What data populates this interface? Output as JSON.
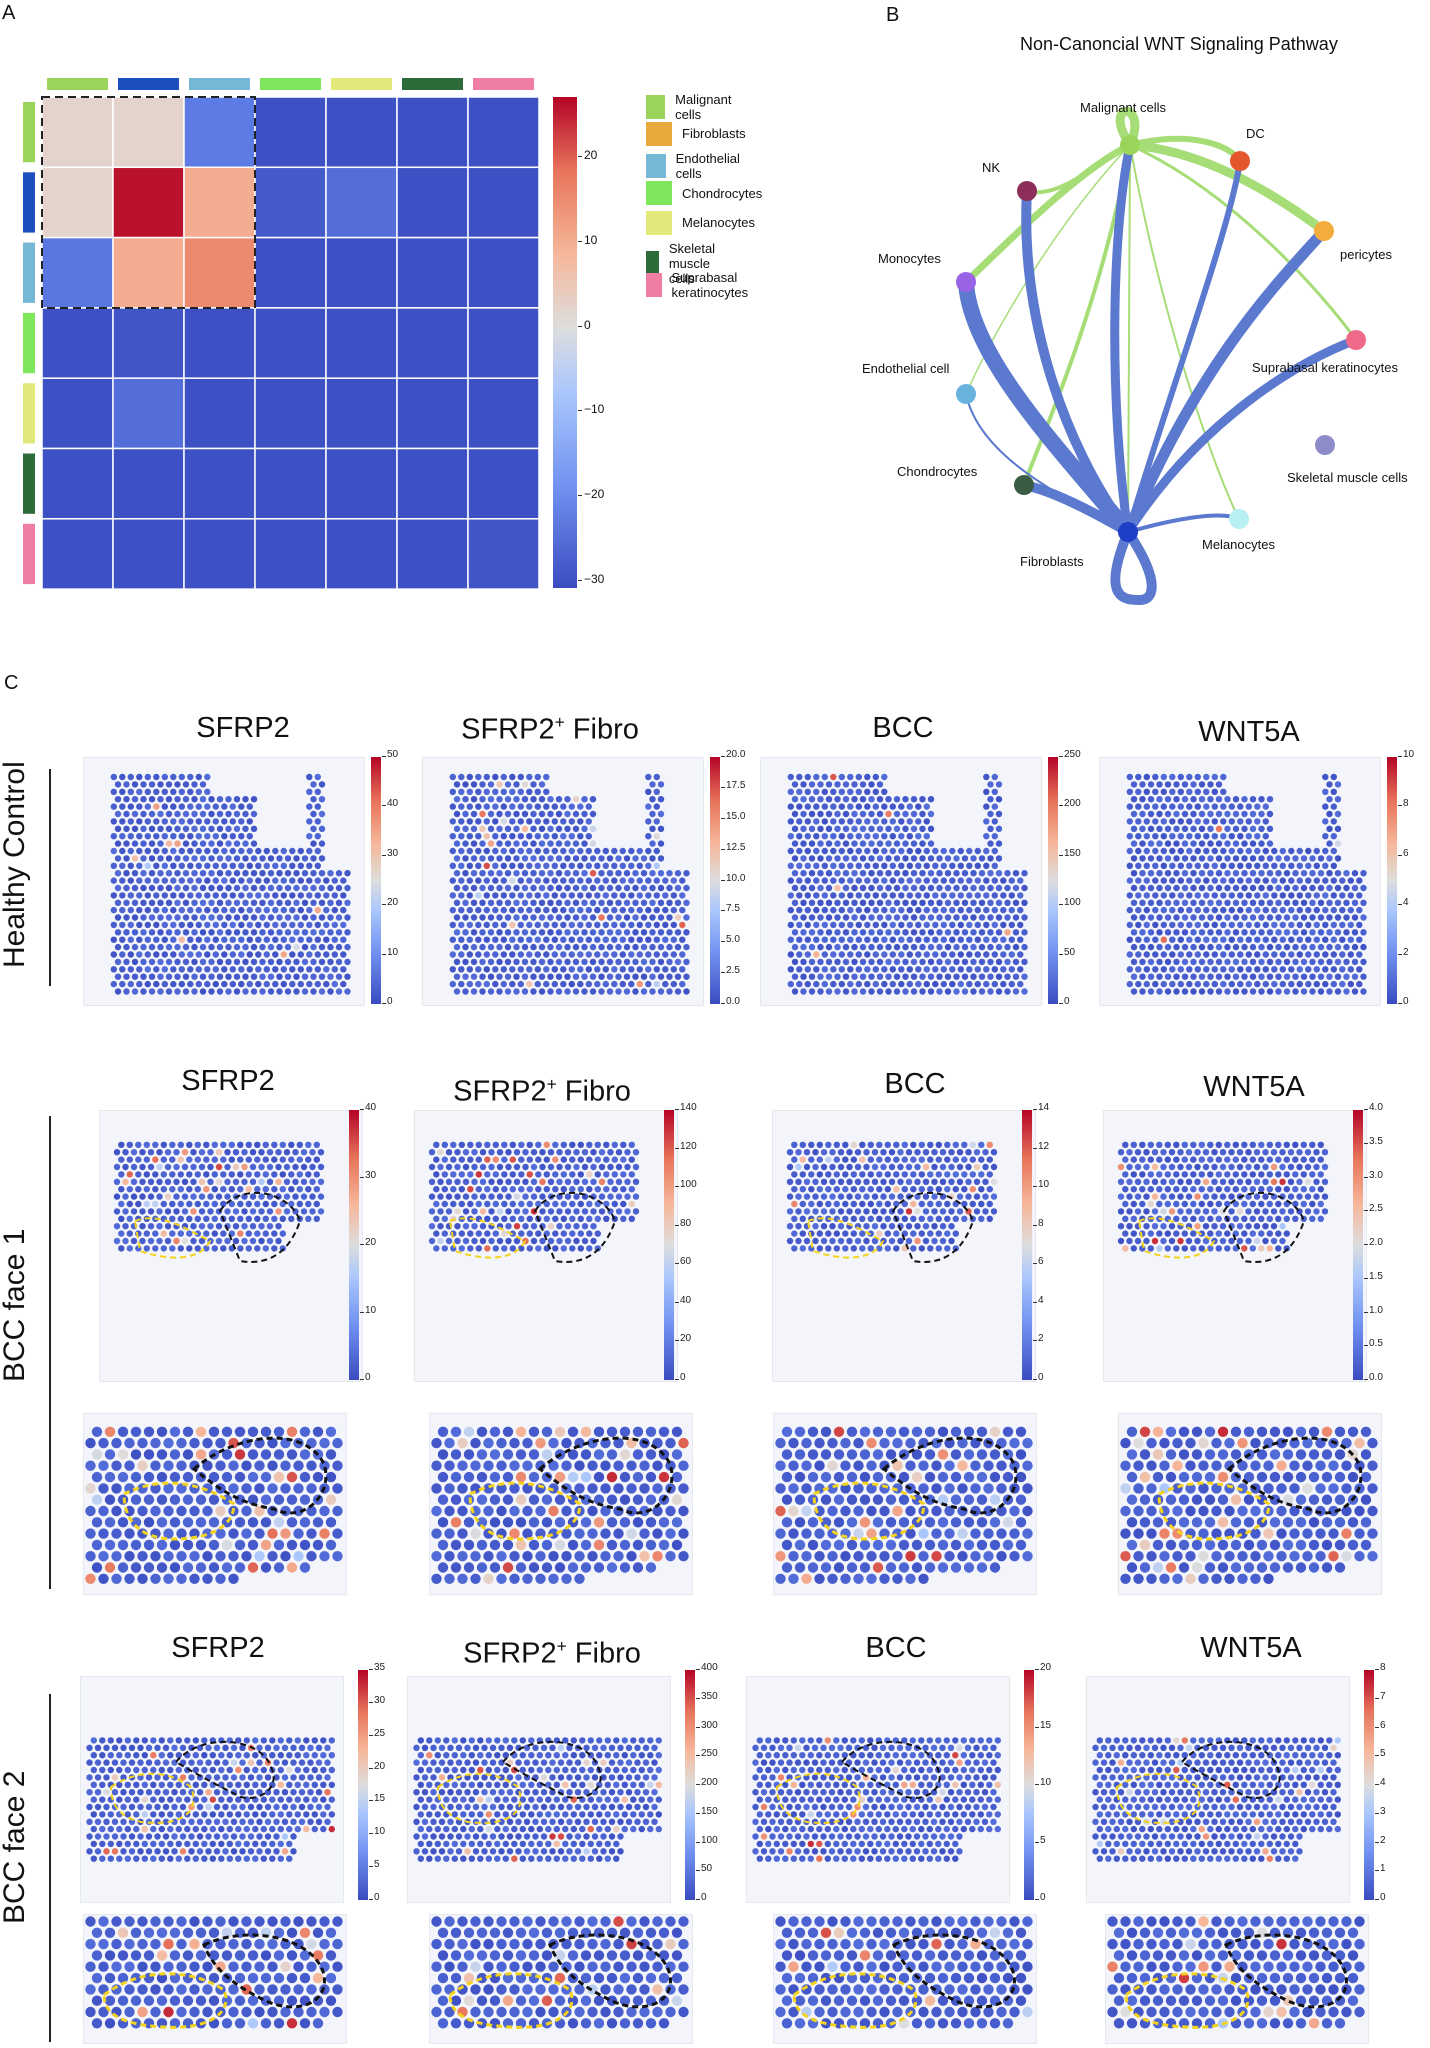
{
  "panels": {
    "A": "A",
    "B": "B",
    "C": "C"
  },
  "heatmap": {
    "cell_types": [
      "Malignant cells",
      "Fibroblasts",
      "Endothelial cells",
      "Chondrocytes",
      "Melanocytes",
      "Skeletal muscle cells",
      "Suprabasal keratinocytes"
    ],
    "type_colors": [
      "#9bd45b",
      "#1f4fbf",
      "#74b8d6",
      "#7de65a",
      "#e3e87a",
      "#2e6b3b",
      "#ef7ea2"
    ],
    "legend_colors": [
      "#9bd45b",
      "#e9a83c",
      "#74b8d6",
      "#7de65a",
      "#e3e87a",
      "#2e6b3b",
      "#ef7ea2"
    ],
    "colorbar_ticks": [
      "20",
      "10",
      "0",
      "−10",
      "−20",
      "−30"
    ],
    "colorbar_range": [
      -31,
      27
    ]
  },
  "chart_data": {
    "type": "heatmap",
    "rows": [
      "Malignant cells",
      "Fibroblasts",
      "Endothelial cells",
      "Chondrocytes",
      "Melanocytes",
      "Skeletal muscle cells",
      "Suprabasal keratinocytes"
    ],
    "cols": [
      "Malignant cells",
      "Fibroblasts",
      "Endothelial cells",
      "Chondrocytes",
      "Melanocytes",
      "Skeletal muscle cells",
      "Suprabasal keratinocytes"
    ],
    "values": [
      [
        2,
        2,
        -21,
        -30,
        -30,
        -30,
        -30
      ],
      [
        2,
        26,
        10,
        -28,
        -24,
        -30,
        -30
      ],
      [
        -22,
        10,
        15,
        -30,
        -30,
        -30,
        -30
      ],
      [
        -30,
        -29,
        -30,
        -30,
        -30,
        -30,
        -30
      ],
      [
        -30,
        -24,
        -30,
        -30,
        -30,
        -30,
        -30
      ],
      [
        -30,
        -30,
        -30,
        -30,
        -30,
        -30,
        -30
      ],
      [
        -30,
        -30,
        -30,
        -30,
        -30,
        -30,
        -29
      ]
    ],
    "vmin": -31,
    "vmax": 27
  },
  "network": {
    "title": "Non-Canoncial WNT Signaling Pathway",
    "nodes": [
      {
        "label": "Malignant cells",
        "color": "#9bd45b"
      },
      {
        "label": "DC",
        "color": "#e4572e"
      },
      {
        "label": "NK",
        "color": "#8c2d5a"
      },
      {
        "label": "pericytes",
        "color": "#f2ad3d"
      },
      {
        "label": "Monocytes",
        "color": "#9a63e6"
      },
      {
        "label": "Suprabasal keratinocytes",
        "color": "#ef6a88"
      },
      {
        "label": "Endothelial cell",
        "color": "#6ab2de"
      },
      {
        "label": "Skeletal muscle cells",
        "color": "#8e8cc8"
      },
      {
        "label": "Chondrocytes",
        "color": "#3b5c43"
      },
      {
        "label": "Melanocytes",
        "color": "#b8f0f2"
      },
      {
        "label": "Fibroblasts",
        "color": "#1d3fc8"
      }
    ]
  },
  "spatial": {
    "col_titles_sfrp2": "SFRP2",
    "col_titles_fibro_main": "SFRP2",
    "col_titles_fibro_sup": "+",
    "col_titles_fibro_tail": " Fibro",
    "col_titles_bcc": "BCC",
    "col_titles_wnt5a": "WNT5A",
    "row_healthy": "Healthy Control",
    "row_face1": "BCC face 1",
    "row_face2": "BCC face 2",
    "colorbars": {
      "healthy": [
        [
          "50",
          "40",
          "30",
          "20",
          "10",
          "0"
        ],
        [
          "20.0",
          "17.5",
          "15.0",
          "12.5",
          "10.0",
          "7.5",
          "5.0",
          "2.5",
          "0.0"
        ],
        [
          "250",
          "200",
          "150",
          "100",
          "50",
          "0"
        ],
        [
          "10",
          "8",
          "6",
          "4",
          "2",
          "0"
        ]
      ],
      "face1": [
        [
          "40",
          "30",
          "20",
          "10",
          "0"
        ],
        [
          "140",
          "120",
          "100",
          "80",
          "60",
          "40",
          "20",
          "0"
        ],
        [
          "14",
          "12",
          "10",
          "8",
          "6",
          "4",
          "2",
          "0"
        ],
        [
          "4.0",
          "3.5",
          "3.0",
          "2.5",
          "2.0",
          "1.5",
          "1.0",
          "0.5",
          "0.0"
        ]
      ],
      "face2": [
        [
          "35",
          "30",
          "25",
          "20",
          "15",
          "10",
          "5",
          "0"
        ],
        [
          "400",
          "350",
          "300",
          "250",
          "200",
          "150",
          "100",
          "50",
          "0"
        ],
        [
          "20",
          "15",
          "10",
          "5",
          "0"
        ],
        [
          "8",
          "7",
          "6",
          "5",
          "4",
          "3",
          "2",
          "1",
          "0"
        ]
      ]
    }
  }
}
